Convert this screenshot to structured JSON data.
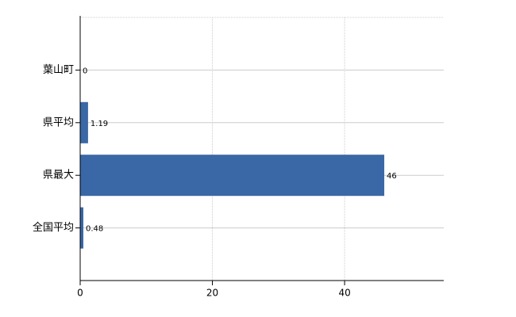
{
  "chart_data": {
    "type": "bar",
    "orientation": "horizontal",
    "categories": [
      "葉山町",
      "県平均",
      "県最大",
      "全国平均"
    ],
    "values": [
      0,
      1.19,
      46,
      0.48
    ],
    "color": "#3a67a5",
    "xlim": [
      0,
      55
    ],
    "xticks": [
      0,
      20,
      40
    ],
    "grid": true
  }
}
